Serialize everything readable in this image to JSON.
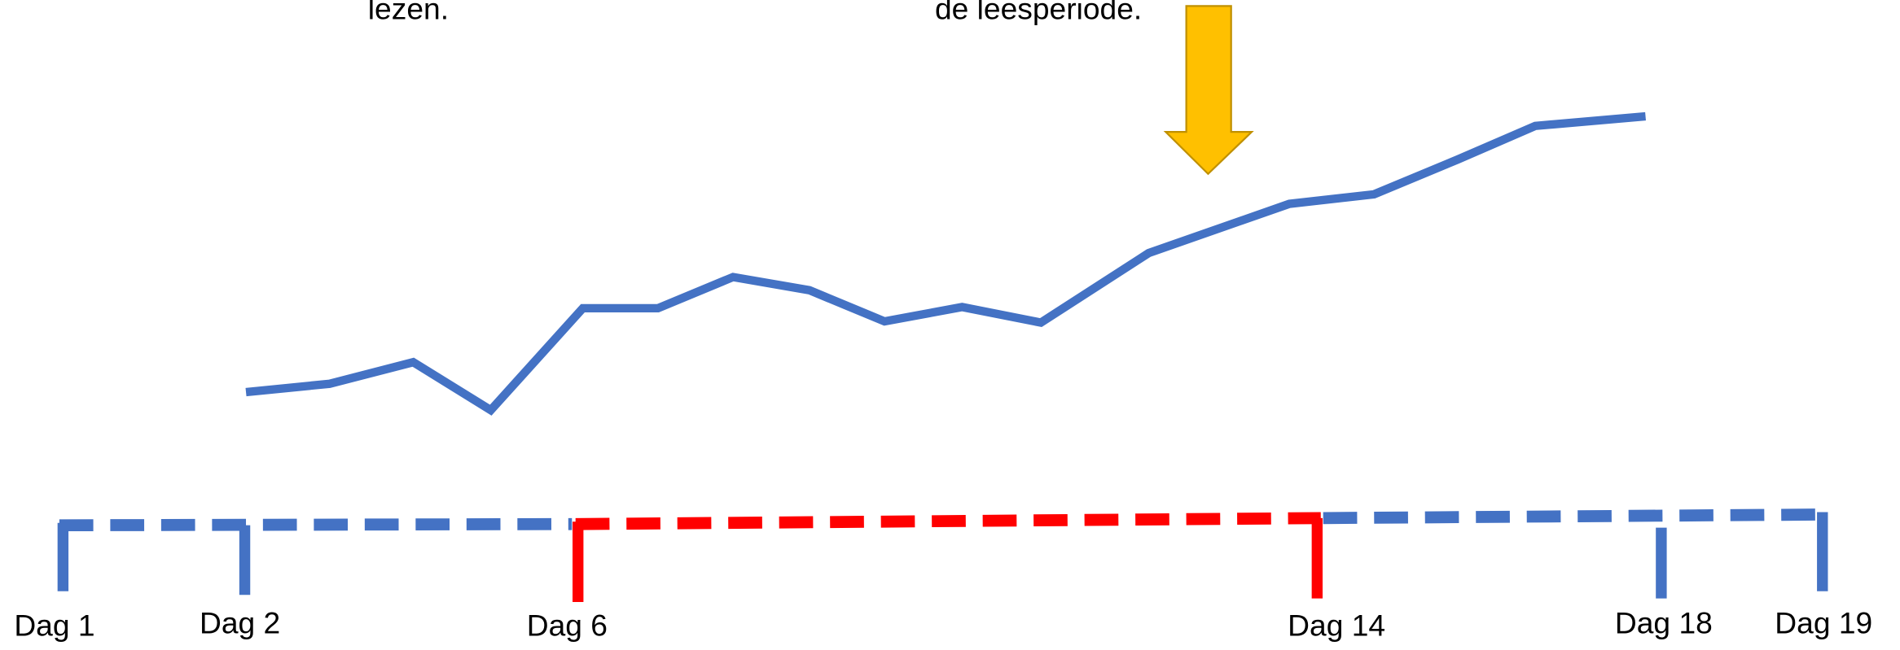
{
  "notes": [
    "lezen.",
    "de leesperiode."
  ],
  "days": [
    "Dag 1",
    "Dag 2",
    "Dag 6",
    "Dag 14",
    "Dag 18",
    "Dag 19"
  ]
}
